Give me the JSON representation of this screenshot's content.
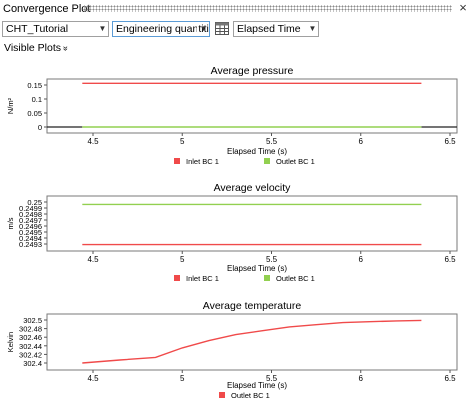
{
  "window": {
    "title": "Convergence Plot",
    "close_glyph": "×"
  },
  "toolbar": {
    "simulation": "CHT_Tutorial",
    "quantity_mode": "Engineering quantities",
    "table_icon": "table-icon",
    "x_axis": "Elapsed Time"
  },
  "visible_plots": {
    "label": "Visible Plots",
    "chevron": "»"
  },
  "colors": {
    "inlet": "#f04a4a",
    "outlet": "#92d050",
    "zero_line": "#222222"
  },
  "plots": [
    {
      "id": "pressure",
      "title": "Average pressure",
      "ylabel": "N/m²",
      "xlabel": "Elapsed Time (s)",
      "xticks": [
        "4.5",
        "5",
        "5.5",
        "6",
        "6.5"
      ],
      "yticks": [
        "0.15",
        "0.1",
        "0.05",
        "0"
      ],
      "legend": [
        "Inlet BC 1",
        "Outlet BC 1"
      ]
    },
    {
      "id": "velocity",
      "title": "Average velocity",
      "ylabel": "m/s",
      "xlabel": "Elapsed Time (s)",
      "xticks": [
        "4.5",
        "5",
        "5.5",
        "6",
        "6.5"
      ],
      "yticks": [
        "0.25",
        "0.2499",
        "0.2498",
        "0.2497",
        "0.2496",
        "0.2495",
        "0.2494",
        "0.2493"
      ],
      "legend": [
        "Inlet BC 1",
        "Outlet BC 1"
      ]
    },
    {
      "id": "temperature",
      "title": "Average temperature",
      "ylabel": "Kelvin",
      "xlabel": "Elapsed Time (s)",
      "xticks": [
        "4.5",
        "5",
        "5.5",
        "6",
        "6.5"
      ],
      "yticks": [
        "302.5",
        "302.48",
        "302.46",
        "302.44",
        "302.42",
        "302.4"
      ],
      "legend": [
        "Outlet BC 1"
      ]
    }
  ],
  "chart_data": [
    {
      "type": "line",
      "title": "Average pressure",
      "xlabel": "Elapsed Time (s)",
      "ylabel": "N/m²",
      "xlim": [
        4.4,
        6.55
      ],
      "ylim": [
        -0.01,
        0.165
      ],
      "x": [
        4.44,
        6.34
      ],
      "series": [
        {
          "name": "Inlet BC 1",
          "color": "#f04a4a",
          "values": [
            0.156,
            0.156
          ]
        },
        {
          "name": "Outlet BC 1",
          "color": "#92d050",
          "values": [
            0.0,
            0.0
          ]
        }
      ],
      "grid": false,
      "legend": "bottom"
    },
    {
      "type": "line",
      "title": "Average velocity",
      "xlabel": "Elapsed Time (s)",
      "ylabel": "m/s",
      "xlim": [
        4.4,
        6.55
      ],
      "ylim": [
        0.24925,
        0.25005
      ],
      "x": [
        4.44,
        6.34
      ],
      "series": [
        {
          "name": "Inlet BC 1",
          "color": "#f04a4a",
          "values": [
            0.24929,
            0.24929
          ]
        },
        {
          "name": "Outlet BC 1",
          "color": "#92d050",
          "values": [
            0.24996,
            0.24996
          ]
        }
      ],
      "grid": false,
      "legend": "bottom"
    },
    {
      "type": "line",
      "title": "Average temperature",
      "xlabel": "Elapsed Time (s)",
      "ylabel": "Kelvin",
      "xlim": [
        4.4,
        6.55
      ],
      "ylim": [
        302.395,
        302.505
      ],
      "x": [
        4.44,
        4.65,
        4.85,
        5.0,
        5.15,
        5.3,
        5.45,
        5.6,
        5.75,
        5.9,
        6.05,
        6.2,
        6.34
      ],
      "series": [
        {
          "name": "Outlet BC 1",
          "color": "#f04a4a",
          "values": [
            302.4,
            302.407,
            302.413,
            302.435,
            302.452,
            302.466,
            302.475,
            302.484,
            302.489,
            302.494,
            302.496,
            302.498,
            302.499
          ]
        }
      ],
      "grid": false,
      "legend": "bottom"
    }
  ]
}
